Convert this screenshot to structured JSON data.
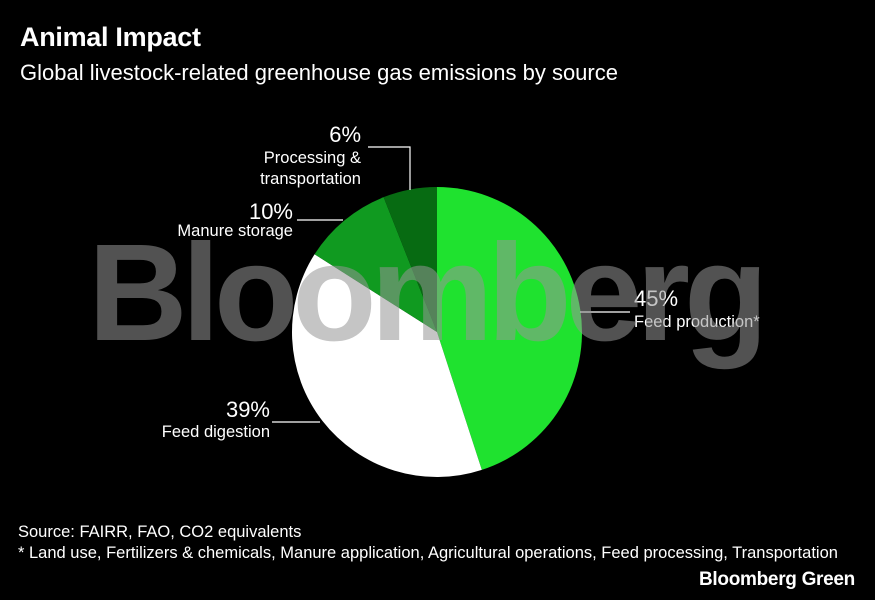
{
  "title": "Animal Impact",
  "subtitle": "Global livestock-related greenhouse gas emissions by source",
  "watermark": "Bloomberg",
  "footer": {
    "source": "Source: FAIRR, FAO, CO2 equivalents",
    "note": "* Land use, Fertilizers & chemicals, Manure application, Agricultural operations, Feed processing, Transportation"
  },
  "brand": "Bloomberg Green",
  "chart_data": {
    "type": "pie",
    "start_angle_deg": 0,
    "direction": "clockwise",
    "slices": [
      {
        "label": "Feed production*",
        "value": 45,
        "value_label": "45%",
        "color": "#1fe22f"
      },
      {
        "label": "Feed digestion",
        "value": 39,
        "value_label": "39%",
        "color": "#ffffff"
      },
      {
        "label": "Manure storage",
        "value": 10,
        "value_label": "10%",
        "color": "#109a20"
      },
      {
        "label": "Processing & transportation",
        "value": 6,
        "value_label": "6%",
        "color": "#076b12"
      }
    ]
  }
}
